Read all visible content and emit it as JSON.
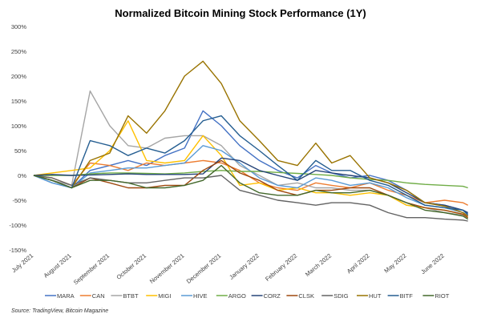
{
  "chart_data": {
    "type": "line",
    "title": "Normalized Bitcoin Mining Stock Performance (1Y)",
    "source": "Source: TradingView, Bitcoin Magazine",
    "ylim": [
      -150,
      300
    ],
    "yticks": [
      300,
      250,
      200,
      150,
      100,
      50,
      0,
      -50,
      -100,
      -150
    ],
    "ytick_labels": [
      "300%",
      "250%",
      "200%",
      "150%",
      "100%",
      "50%",
      "0%",
      "-50%",
      "-100%",
      "-150%"
    ],
    "xtick_dates": [
      "2021-07-01",
      "2021-08-01",
      "2021-09-01",
      "2021-10-01",
      "2021-11-01",
      "2021-12-01",
      "2022-01-01",
      "2022-02-01",
      "2022-03-01",
      "2022-04-01",
      "2022-05-01",
      "2022-06-01"
    ],
    "xtick_labels": [
      "July 2021",
      "August 2021",
      "September 2021",
      "October 2021",
      "November 2021",
      "December 2021",
      "January 2022",
      "February 2022",
      "March 2022",
      "April 2022",
      "May 2022",
      "June 2022"
    ],
    "grid": false,
    "legend_position": "bottom",
    "x": [
      "2021-07-01",
      "2021-07-16",
      "2021-08-01",
      "2021-08-16",
      "2021-09-01",
      "2021-09-16",
      "2021-10-01",
      "2021-10-16",
      "2021-11-01",
      "2021-11-16",
      "2021-12-01",
      "2021-12-16",
      "2022-01-01",
      "2022-01-16",
      "2022-02-01",
      "2022-02-16",
      "2022-03-01",
      "2022-03-16",
      "2022-04-01",
      "2022-04-16",
      "2022-05-01",
      "2022-05-16",
      "2022-06-01",
      "2022-06-16",
      "2022-06-20"
    ],
    "series": [
      {
        "name": "MARA",
        "color": "#4472C4",
        "values": [
          0,
          -15,
          -25,
          10,
          20,
          30,
          20,
          40,
          55,
          130,
          100,
          60,
          30,
          10,
          -5,
          20,
          5,
          -5,
          0,
          -10,
          -30,
          -55,
          -60,
          -70,
          -80
        ]
      },
      {
        "name": "CAN",
        "color": "#ED7D31",
        "values": [
          0,
          -5,
          -20,
          25,
          20,
          10,
          25,
          20,
          25,
          30,
          25,
          10,
          -15,
          -25,
          -30,
          -15,
          -20,
          -25,
          -15,
          -30,
          -40,
          -55,
          -50,
          -55,
          -60
        ]
      },
      {
        "name": "BTBT",
        "color": "#A5A5A5",
        "values": [
          0,
          -10,
          -20,
          170,
          100,
          60,
          55,
          75,
          80,
          80,
          60,
          20,
          0,
          -20,
          -15,
          -25,
          -25,
          -30,
          -30,
          -40,
          -60,
          -65,
          -75,
          -80,
          -85
        ]
      },
      {
        "name": "MIGI",
        "color": "#FFC000",
        "values": [
          0,
          5,
          10,
          15,
          50,
          110,
          30,
          25,
          30,
          80,
          40,
          -20,
          -15,
          -30,
          -25,
          -35,
          -35,
          -40,
          -35,
          -40,
          -60,
          -65,
          -70,
          -78,
          -85
        ]
      },
      {
        "name": "HIVE",
        "color": "#5B9BD5",
        "values": [
          0,
          -15,
          -25,
          5,
          10,
          15,
          15,
          20,
          25,
          60,
          50,
          25,
          -5,
          -20,
          -25,
          -5,
          -10,
          -20,
          -15,
          -25,
          -45,
          -60,
          -65,
          -75,
          -82
        ]
      },
      {
        "name": "ARGO",
        "color": "#70AD47",
        "values": [
          0,
          0,
          0,
          3,
          5,
          5,
          4,
          3,
          5,
          8,
          10,
          8,
          8,
          6,
          4,
          2,
          0,
          -5,
          -8,
          -10,
          -15,
          -18,
          -20,
          -22,
          -25
        ]
      },
      {
        "name": "CORZ",
        "color": "#264478",
        "values": [
          0,
          2,
          0,
          1,
          2,
          3,
          2,
          2,
          2,
          3,
          35,
          30,
          10,
          0,
          -10,
          10,
          5,
          0,
          -5,
          -15,
          -35,
          -55,
          -60,
          -70,
          -75
        ]
      },
      {
        "name": "CLSK",
        "color": "#9E480E",
        "values": [
          0,
          -10,
          -25,
          -5,
          -15,
          -25,
          -25,
          -20,
          -20,
          10,
          30,
          5,
          -10,
          -30,
          -40,
          -30,
          -30,
          -25,
          -25,
          -40,
          -55,
          -65,
          -70,
          -78,
          -85
        ]
      },
      {
        "name": "SDIG",
        "color": "#636363",
        "values": [
          0,
          -5,
          -20,
          -5,
          -10,
          -15,
          -15,
          -10,
          -5,
          -5,
          0,
          -30,
          -40,
          -50,
          -55,
          -60,
          -55,
          -55,
          -60,
          -75,
          -85,
          -85,
          -88,
          -90,
          -92
        ]
      },
      {
        "name": "HUT",
        "color": "#997300",
        "values": [
          0,
          -10,
          -25,
          30,
          45,
          120,
          85,
          130,
          200,
          230,
          185,
          110,
          70,
          30,
          20,
          65,
          25,
          40,
          -5,
          -15,
          -30,
          -55,
          -62,
          -75,
          -82
        ]
      },
      {
        "name": "BITF",
        "color": "#255E91",
        "values": [
          0,
          -10,
          -25,
          70,
          60,
          40,
          55,
          45,
          70,
          110,
          120,
          80,
          50,
          20,
          -10,
          30,
          10,
          10,
          -10,
          -20,
          -40,
          -60,
          -65,
          -70,
          -78
        ]
      },
      {
        "name": "RIOT",
        "color": "#43682B",
        "values": [
          0,
          -10,
          -25,
          -10,
          -10,
          -15,
          -25,
          -25,
          -20,
          -10,
          20,
          -15,
          -35,
          -40,
          -40,
          -30,
          -35,
          -35,
          -30,
          -40,
          -55,
          -70,
          -75,
          -82,
          -88
        ]
      }
    ]
  }
}
